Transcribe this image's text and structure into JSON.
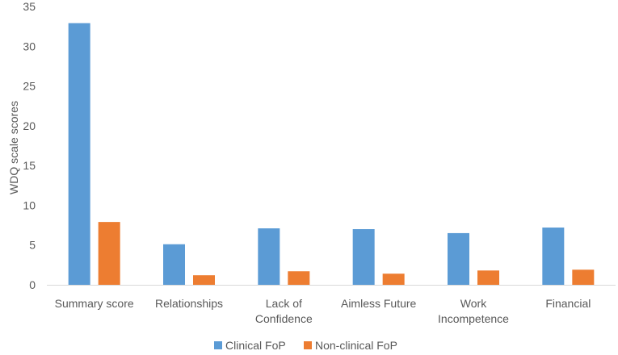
{
  "chart_data": {
    "type": "bar",
    "title": "",
    "xlabel": "",
    "ylabel": "WDQ scale scores",
    "ylim": [
      0,
      35
    ],
    "yticks": [
      0,
      5,
      10,
      15,
      20,
      25,
      30,
      35
    ],
    "grid": false,
    "legend_position": "bottom-center",
    "categories": [
      [
        "Summary score"
      ],
      [
        "Relationships"
      ],
      [
        "Lack of",
        "Confidence"
      ],
      [
        "Aimless Future"
      ],
      [
        "Work",
        "Incompetence"
      ],
      [
        "Financial"
      ]
    ],
    "series": [
      {
        "name": "Clinical FoP",
        "color": "#5B9BD5",
        "values": [
          32.9,
          5.1,
          7.1,
          7.0,
          6.5,
          7.2
        ]
      },
      {
        "name": "Non-clinical FoP",
        "color": "#ED7D31",
        "values": [
          7.9,
          1.2,
          1.7,
          1.4,
          1.8,
          1.9
        ]
      }
    ]
  }
}
